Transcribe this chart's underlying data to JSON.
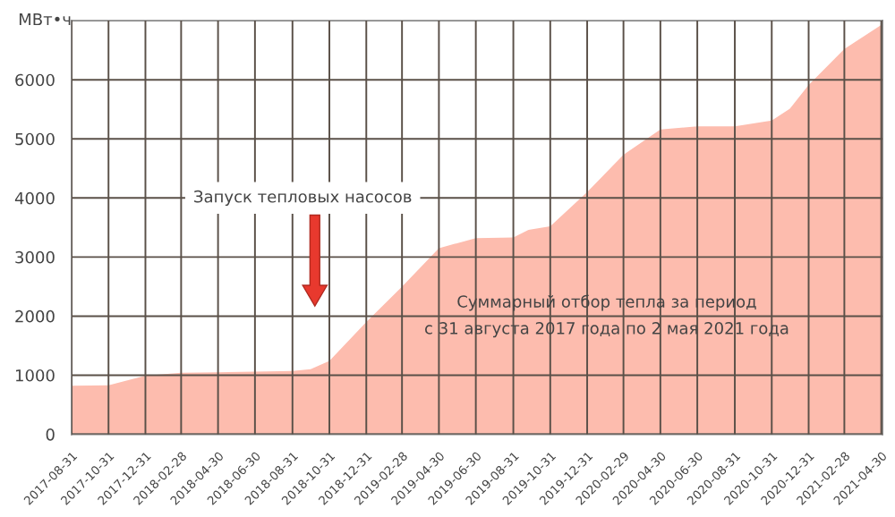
{
  "chart_data": {
    "type": "area",
    "ylabel": "МВт•ч",
    "x": [
      "2017-08-31",
      "2017-10-31",
      "2017-12-31",
      "2018-02-28",
      "2018-04-30",
      "2018-06-30",
      "2018-08-31",
      "2018-09-30",
      "2018-10-31",
      "2018-12-31",
      "2019-02-28",
      "2019-04-30",
      "2019-06-30",
      "2019-08-31",
      "2019-09-25",
      "2019-10-31",
      "2019-12-31",
      "2020-02-29",
      "2020-04-30",
      "2020-06-30",
      "2020-08-31",
      "2020-10-31",
      "2020-11-30",
      "2020-12-31",
      "2021-02-28",
      "2021-05-02"
    ],
    "series": [
      {
        "color": "#fdbcae",
        "values": [
          820,
          830,
          990,
          1040,
          1050,
          1060,
          1070,
          1100,
          1240,
          1900,
          2500,
          3150,
          3320,
          3330,
          3460,
          3520,
          4100,
          4730,
          5160,
          5210,
          5210,
          5310,
          5510,
          5910,
          6520,
          6940
        ]
      }
    ],
    "xlim": [
      "2017-08-31",
      "2021-05-02"
    ],
    "xticks": [
      "2017-08-31",
      "2017-10-31",
      "2017-12-31",
      "2018-02-28",
      "2018-04-30",
      "2018-06-30",
      "2018-08-31",
      "2018-10-31",
      "2018-12-31",
      "2019-02-28",
      "2019-04-30",
      "2019-06-30",
      "2019-08-31",
      "2019-10-31",
      "2019-12-31",
      "2020-02-29",
      "2020-04-30",
      "2020-06-30",
      "2020-08-31",
      "2020-10-31",
      "2020-12-31",
      "2021-02-28",
      "2021-04-30"
    ],
    "ylim": [
      0,
      7000
    ],
    "yticks": [
      0,
      1000,
      2000,
      3000,
      4000,
      5000,
      6000
    ],
    "grid": true,
    "annotations": [
      "Запуск тепловых насосов",
      "Суммарный отбор тепла за период\nс 31 августа 2017 года по 2 мая 2021 года"
    ]
  }
}
